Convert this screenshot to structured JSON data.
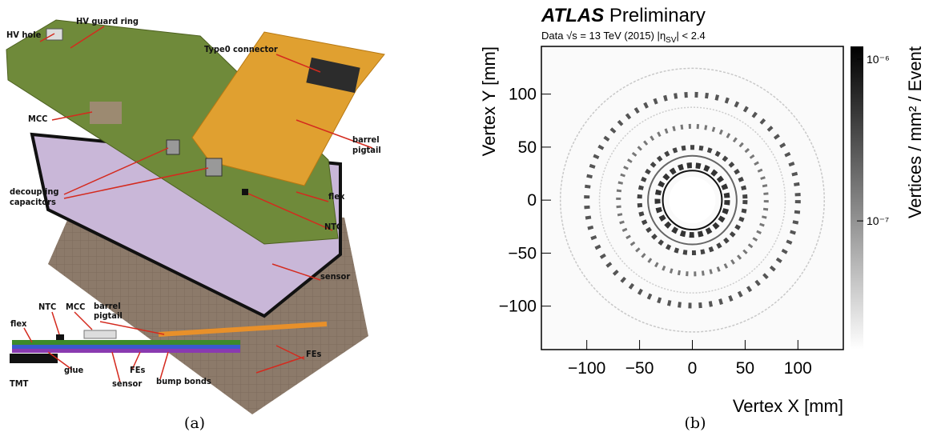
{
  "figure_a": {
    "caption": "(a)",
    "labels": {
      "hv_hole": "HV hole",
      "hv_guard_ring": "HV guard ring",
      "type0_connector": "Type0 connector",
      "mcc": "MCC",
      "barrel_pigtail": [
        "barrel",
        "pigtail"
      ],
      "decoupling_capacitors": [
        "decoupling",
        "capacitors"
      ],
      "flex": "flex",
      "ntc": "NTC",
      "sensor": "sensor",
      "fes": "FEs"
    },
    "cross_section": {
      "ntc": "NTC",
      "mcc": "MCC",
      "barrel_pigtail": [
        "barrel",
        "pigtail"
      ],
      "flex": "flex",
      "glue": "glue",
      "tmt": "TMT",
      "sensor": "sensor",
      "fes": "FEs",
      "bump_bonds": "bump bonds"
    }
  },
  "caption_b": "(b)",
  "chart_data": {
    "type": "heatmap",
    "experiment": "ATLAS",
    "label": "Preliminary",
    "subtitle": [
      "Data √s = 13 TeV (2015)  |η",
      "SV",
      "| < 2.4"
    ],
    "x_label": "Vertex X [mm]",
    "y_label": "Vertex Y [mm]",
    "colorbar_label": "Vertices / mm² / Event",
    "xlim": [
      -143,
      143
    ],
    "ylim": [
      -141,
      145
    ],
    "xticks": [
      {
        "value": -100,
        "label": "−100"
      },
      {
        "value": -50,
        "label": "−50"
      },
      0,
      50,
      100
    ],
    "yticks": [
      {
        "value": -100,
        "label": "−100"
      },
      {
        "value": -50,
        "label": "−50"
      },
      0,
      50,
      100
    ],
    "zlim": [
      1.6e-08,
      1.2e-06
    ],
    "zlog": true,
    "zticks": [
      {
        "value": 1e-07,
        "label": "10⁻⁷"
      },
      {
        "value": 1e-06,
        "label": "10⁻⁶"
      }
    ],
    "colormap": [
      "#ffffff",
      "#000000"
    ]
  }
}
